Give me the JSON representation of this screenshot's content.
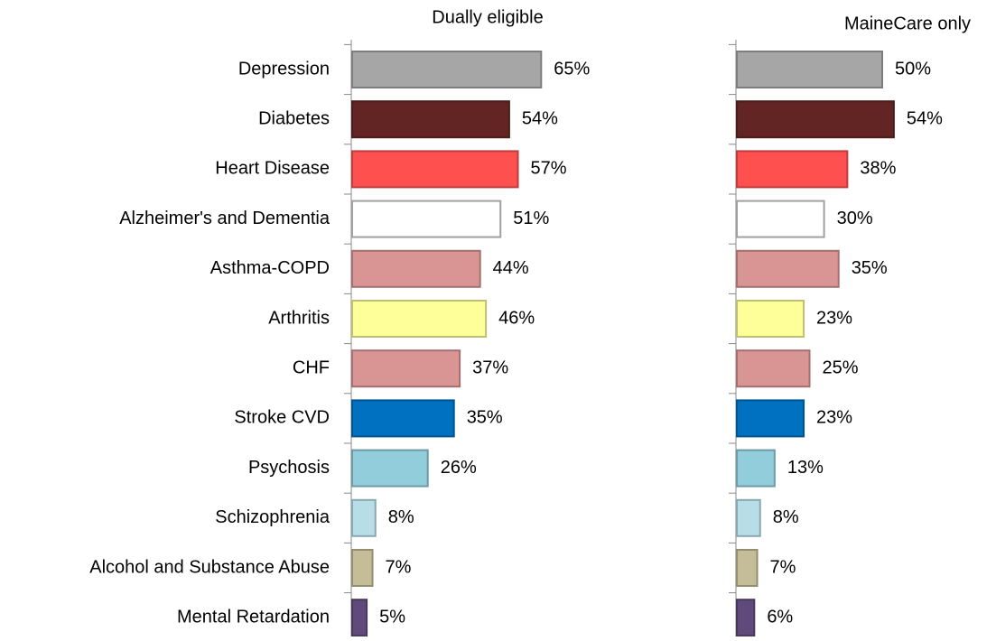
{
  "chart_data": [
    {
      "type": "bar",
      "title": "Dually eligible",
      "categories": [
        "Depression",
        "Diabetes",
        "Heart Disease",
        "Alzheimer's and Dementia",
        "Asthma-COPD",
        "Arthritis",
        "CHF",
        "Stroke CVD",
        "Psychosis",
        "Schizophrenia",
        "Alcohol and Substance Abuse",
        "Mental Retardation"
      ],
      "values": [
        65,
        54,
        57,
        51,
        44,
        46,
        37,
        35,
        26,
        8,
        7,
        5
      ],
      "value_labels": [
        "65%",
        "54%",
        "57%",
        "51%",
        "44%",
        "46%",
        "37%",
        "35%",
        "26%",
        "8%",
        "7%",
        "5%"
      ],
      "colors": [
        "#a6a6a6",
        "#632523",
        "#ff5050",
        "#ffffff",
        "#d99594",
        "#ffff99",
        "#d99594",
        "#0070c0",
        "#92cddc",
        "#b7dee8",
        "#c4bd97",
        "#604a7b"
      ],
      "xlim": [
        0,
        100
      ]
    },
    {
      "type": "bar",
      "title": "MaineCare only",
      "values": [
        50,
        54,
        38,
        30,
        35,
        23,
        25,
        23,
        13,
        8,
        7,
        6
      ],
      "value_labels": [
        "50%",
        "54%",
        "38%",
        "30%",
        "35%",
        "23%",
        "25%",
        "23%",
        "13%",
        "8%",
        "7%",
        "6%"
      ],
      "colors": [
        "#a6a6a6",
        "#632523",
        "#ff5050",
        "#ffffff",
        "#d99594",
        "#ffff99",
        "#d99594",
        "#0070c0",
        "#92cddc",
        "#b7dee8",
        "#c4bd97",
        "#604a7b"
      ],
      "xlim": [
        0,
        100
      ]
    }
  ]
}
